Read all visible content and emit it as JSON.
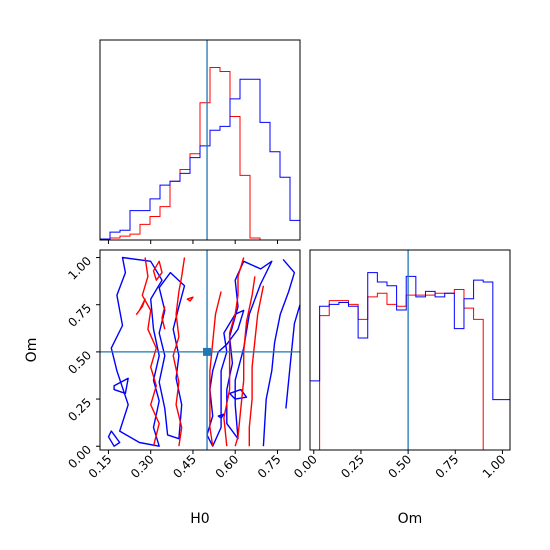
{
  "chart_data": {
    "type": "corner",
    "parameters": [
      "H0",
      "Om"
    ],
    "xlabel_H0": "H0",
    "xlabel_Om": "Om",
    "ylabel_Om": "Om",
    "truth": {
      "H0": 0.5,
      "Om": 0.5,
      "color": "#1f77b4"
    },
    "series_colors": {
      "blue": "#0000ff",
      "red": "#ff0000"
    },
    "H0_ticks": [
      "0.15",
      "0.30",
      "0.45",
      "0.60",
      "0.75"
    ],
    "Om_ticks": [
      "0.00",
      "0.25",
      "0.50",
      "0.75",
      "1.00"
    ],
    "H0_range": [
      0.12,
      0.83
    ],
    "Om_range": [
      -0.02,
      1.04
    ],
    "hist_H0": {
      "edges": [
        0.12,
        0.1555,
        0.191,
        0.2265,
        0.262,
        0.2975,
        0.333,
        0.3685,
        0.404,
        0.4395,
        0.475,
        0.5105,
        0.546,
        0.5815,
        0.617,
        0.6525,
        0.688,
        0.7235,
        0.759,
        0.7945,
        0.83
      ],
      "blue": [
        0.005,
        0.04,
        0.05,
        0.15,
        0.15,
        0.21,
        0.28,
        0.3,
        0.34,
        0.42,
        0.48,
        0.56,
        0.58,
        0.72,
        0.82,
        0.82,
        0.6,
        0.45,
        0.32,
        0.1
      ],
      "red": [
        0.002,
        0.01,
        0.02,
        0.03,
        0.08,
        0.12,
        0.17,
        0.3,
        0.36,
        0.44,
        0.7,
        0.88,
        0.86,
        0.63,
        0.33,
        0.01,
        0.0,
        0.0,
        0.0,
        0.0
      ],
      "ymax": 1.0
    },
    "hist_Om": {
      "edges": [
        -0.02,
        0.031,
        0.082,
        0.133,
        0.184,
        0.235,
        0.286,
        0.337,
        0.388,
        0.439,
        0.49,
        0.541,
        0.592,
        0.643,
        0.694,
        0.745,
        0.796,
        0.847,
        0.898,
        0.949,
        1.0,
        1.04
      ],
      "blue": [
        0.37,
        0.77,
        0.78,
        0.79,
        0.77,
        0.6,
        0.95,
        0.9,
        0.88,
        0.75,
        0.93,
        0.82,
        0.85,
        0.82,
        0.84,
        0.65,
        0.81,
        0.91,
        0.9,
        0.27,
        0.27
      ],
      "red": [
        0.0,
        0.72,
        0.8,
        0.8,
        0.78,
        0.7,
        0.82,
        0.84,
        0.78,
        0.77,
        0.83,
        0.83,
        0.83,
        0.84,
        0.84,
        0.86,
        0.76,
        0.7,
        0.0,
        0.0,
        0.0
      ],
      "ymax": 1.05
    },
    "contours": [
      {
        "series": "blue",
        "points": [
          [
            0.2,
            1.0
          ],
          [
            0.3,
            0.98
          ],
          [
            0.34,
            0.88
          ],
          [
            0.3,
            0.78
          ],
          [
            0.31,
            0.62
          ],
          [
            0.33,
            0.48
          ],
          [
            0.31,
            0.35
          ],
          [
            0.33,
            0.24
          ],
          [
            0.31,
            0.1
          ],
          [
            0.33,
            0.0
          ],
          [
            0.26,
            0.02
          ],
          [
            0.19,
            0.08
          ],
          [
            0.22,
            0.22
          ],
          [
            0.18,
            0.4
          ],
          [
            0.16,
            0.52
          ],
          [
            0.2,
            0.64
          ],
          [
            0.18,
            0.8
          ],
          [
            0.21,
            0.92
          ]
        ],
        "closed": true
      },
      {
        "series": "blue",
        "points": [
          [
            0.37,
            0.92
          ],
          [
            0.42,
            0.85
          ],
          [
            0.4,
            0.74
          ],
          [
            0.38,
            0.62
          ],
          [
            0.4,
            0.48
          ],
          [
            0.39,
            0.36
          ],
          [
            0.41,
            0.22
          ],
          [
            0.4,
            0.04
          ],
          [
            0.36,
            0.06
          ],
          [
            0.35,
            0.2
          ],
          [
            0.33,
            0.34
          ],
          [
            0.35,
            0.48
          ],
          [
            0.33,
            0.6
          ],
          [
            0.35,
            0.72
          ],
          [
            0.33,
            0.84
          ]
        ],
        "closed": true
      },
      {
        "series": "blue",
        "points": [
          [
            0.17,
            0.32
          ],
          [
            0.22,
            0.36
          ],
          [
            0.21,
            0.28
          ],
          [
            0.17,
            0.3
          ]
        ],
        "closed": true
      },
      {
        "series": "blue",
        "points": [
          [
            0.16,
            0.08
          ],
          [
            0.19,
            0.02
          ],
          [
            0.17,
            0.0
          ],
          [
            0.15,
            0.05
          ]
        ],
        "closed": true
      },
      {
        "series": "blue",
        "points": [
          [
            0.63,
            0.98
          ],
          [
            0.69,
            0.94
          ],
          [
            0.73,
            0.98
          ],
          [
            0.69,
            0.86
          ],
          [
            0.65,
            0.7
          ],
          [
            0.63,
            0.52
          ],
          [
            0.6,
            0.35
          ],
          [
            0.6,
            0.22
          ],
          [
            0.61,
            0.04
          ],
          [
            0.57,
            0.12
          ],
          [
            0.57,
            0.3
          ],
          [
            0.59,
            0.44
          ],
          [
            0.58,
            0.58
          ],
          [
            0.61,
            0.74
          ],
          [
            0.6,
            0.88
          ]
        ],
        "closed": true
      },
      {
        "series": "blue",
        "points": [
          [
            0.56,
            0.6
          ],
          [
            0.6,
            0.7
          ],
          [
            0.63,
            0.72
          ],
          [
            0.61,
            0.62
          ],
          [
            0.57,
            0.54
          ],
          [
            0.54,
            0.5
          ],
          [
            0.52,
            0.4
          ],
          [
            0.51,
            0.3
          ],
          [
            0.52,
            0.16
          ],
          [
            0.5,
            0.06
          ],
          [
            0.52,
            0.0
          ],
          [
            0.55,
            0.1
          ],
          [
            0.55,
            0.26
          ],
          [
            0.55,
            0.4
          ],
          [
            0.57,
            0.5
          ]
        ],
        "closed": true
      },
      {
        "series": "blue",
        "points": [
          [
            0.77,
            0.99
          ],
          [
            0.81,
            0.92
          ],
          [
            0.79,
            0.82
          ],
          [
            0.76,
            0.7
          ],
          [
            0.74,
            0.55
          ],
          [
            0.73,
            0.4
          ],
          [
            0.71,
            0.25
          ],
          [
            0.7,
            0.0
          ]
        ],
        "closed": false
      },
      {
        "series": "blue",
        "points": [
          [
            0.83,
            0.75
          ],
          [
            0.81,
            0.65
          ],
          [
            0.8,
            0.5
          ],
          [
            0.79,
            0.35
          ],
          [
            0.78,
            0.2
          ]
        ],
        "closed": false
      },
      {
        "series": "blue",
        "points": [
          [
            0.58,
            0.28
          ],
          [
            0.62,
            0.3
          ],
          [
            0.64,
            0.26
          ],
          [
            0.6,
            0.25
          ]
        ],
        "closed": true
      },
      {
        "series": "blue",
        "points": [
          [
            0.54,
            0.16
          ],
          [
            0.56,
            0.17
          ],
          [
            0.55,
            0.15
          ]
        ],
        "closed": true
      },
      {
        "series": "red",
        "points": [
          [
            0.42,
            1.0
          ],
          [
            0.41,
            0.9
          ],
          [
            0.4,
            0.82
          ],
          [
            0.39,
            0.7
          ],
          [
            0.4,
            0.58
          ],
          [
            0.38,
            0.48
          ],
          [
            0.4,
            0.34
          ],
          [
            0.39,
            0.22
          ],
          [
            0.41,
            0.1
          ],
          [
            0.4,
            0.0
          ]
        ],
        "closed": false
      },
      {
        "series": "red",
        "points": [
          [
            0.28,
            1.0
          ],
          [
            0.29,
            0.9
          ],
          [
            0.27,
            0.8
          ],
          [
            0.3,
            0.72
          ],
          [
            0.29,
            0.62
          ],
          [
            0.32,
            0.52
          ],
          [
            0.3,
            0.42
          ],
          [
            0.32,
            0.32
          ],
          [
            0.3,
            0.22
          ],
          [
            0.33,
            0.12
          ],
          [
            0.31,
            0.0
          ]
        ],
        "closed": false
      },
      {
        "series": "red",
        "points": [
          [
            0.25,
            0.7
          ],
          [
            0.27,
            0.74
          ],
          [
            0.28,
            0.78
          ],
          [
            0.26,
            0.72
          ],
          [
            0.25,
            0.7
          ]
        ],
        "closed": true
      },
      {
        "series": "red",
        "points": [
          [
            0.33,
            0.98
          ],
          [
            0.34,
            0.92
          ],
          [
            0.32,
            0.88
          ],
          [
            0.31,
            0.93
          ]
        ],
        "closed": true
      },
      {
        "series": "red",
        "points": [
          [
            0.35,
            0.62
          ],
          [
            0.34,
            0.68
          ],
          [
            0.35,
            0.74
          ]
        ],
        "closed": false
      },
      {
        "series": "red",
        "points": [
          [
            0.43,
            0.78
          ],
          [
            0.45,
            0.79
          ],
          [
            0.44,
            0.77
          ]
        ],
        "closed": true
      },
      {
        "series": "red",
        "points": [
          [
            0.63,
            1.0
          ],
          [
            0.61,
            0.9
          ],
          [
            0.61,
            0.8
          ],
          [
            0.6,
            0.7
          ],
          [
            0.58,
            0.6
          ],
          [
            0.58,
            0.45
          ],
          [
            0.58,
            0.3
          ],
          [
            0.56,
            0.15
          ],
          [
            0.57,
            0.0
          ]
        ],
        "closed": false
      },
      {
        "series": "red",
        "points": [
          [
            0.67,
            0.9
          ],
          [
            0.66,
            0.8
          ],
          [
            0.64,
            0.66
          ],
          [
            0.63,
            0.5
          ],
          [
            0.63,
            0.35
          ],
          [
            0.62,
            0.2
          ],
          [
            0.61,
            0.05
          ],
          [
            0.6,
            0.0
          ]
        ],
        "closed": false
      },
      {
        "series": "red",
        "points": [
          [
            0.7,
            0.85
          ],
          [
            0.68,
            0.7
          ],
          [
            0.67,
            0.56
          ],
          [
            0.66,
            0.42
          ],
          [
            0.66,
            0.25
          ],
          [
            0.65,
            0.1
          ],
          [
            0.65,
            0.0
          ]
        ],
        "closed": false
      },
      {
        "series": "red",
        "points": [
          [
            0.55,
            0.82
          ],
          [
            0.53,
            0.7
          ],
          [
            0.52,
            0.55
          ],
          [
            0.51,
            0.4
          ],
          [
            0.51,
            0.25
          ],
          [
            0.51,
            0.1
          ],
          [
            0.52,
            0.0
          ]
        ],
        "closed": false
      }
    ]
  }
}
